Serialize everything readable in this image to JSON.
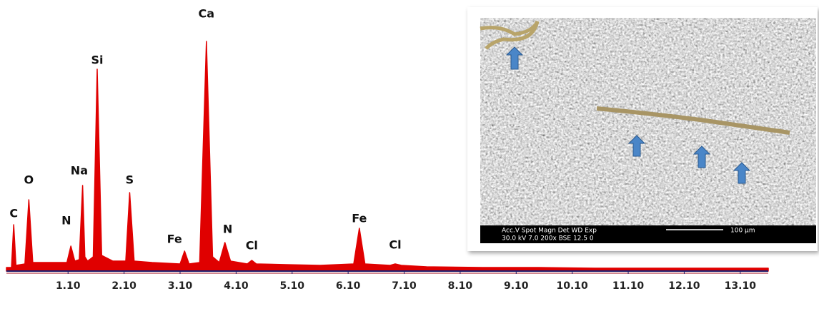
{
  "chart_data": {
    "type": "spectrum",
    "color": "#e00000",
    "x": [
      0,
      0.09,
      0.13,
      0.17,
      0.33,
      0.4,
      0.47,
      0.6,
      1.08,
      1.15,
      1.22,
      1.3,
      1.36,
      1.4,
      1.45,
      1.55,
      1.62,
      1.7,
      1.9,
      2.13,
      2.2,
      2.28,
      2.6,
      3.1,
      3.18,
      3.26,
      3.45,
      3.57,
      3.68,
      3.8,
      3.9,
      4.0,
      4.3,
      4.38,
      4.46,
      5.0,
      5.6,
      6.2,
      6.3,
      6.4,
      6.85,
      6.94,
      7.05,
      7.5,
      8.5,
      9.5,
      10.5,
      11.5,
      12.5,
      13.6
    ],
    "values": [
      5,
      5,
      65,
      8,
      10,
      100,
      12,
      12,
      12,
      35,
      14,
      16,
      120,
      20,
      14,
      20,
      283,
      22,
      14,
      14,
      110,
      14,
      12,
      10,
      28,
      10,
      12,
      322,
      20,
      12,
      40,
      14,
      10,
      15,
      10,
      9,
      8,
      10,
      60,
      10,
      8,
      10,
      8,
      6,
      5,
      5,
      4,
      4,
      4,
      4
    ],
    "xlim": [
      0,
      13.6
    ],
    "ylim": [
      0,
      370
    ],
    "xticks": [
      {
        "value": 1.1,
        "label": "1.10"
      },
      {
        "value": 2.1,
        "label": "2.10"
      },
      {
        "value": 3.1,
        "label": "3.10"
      },
      {
        "value": 4.1,
        "label": "4.10"
      },
      {
        "value": 5.1,
        "label": "5.10"
      },
      {
        "value": 6.1,
        "label": "6.10"
      },
      {
        "value": 7.1,
        "label": "7.10"
      },
      {
        "value": 8.1,
        "label": "8.10"
      },
      {
        "value": 9.1,
        "label": "9.10"
      },
      {
        "value": 10.1,
        "label": "10.10"
      },
      {
        "value": 11.1,
        "label": "11.10"
      },
      {
        "value": 12.1,
        "label": "12.10"
      },
      {
        "value": 13.1,
        "label": "13.10"
      }
    ],
    "annotations": [
      {
        "text": "C",
        "x": 0.13,
        "y": 80
      },
      {
        "text": "O",
        "x": 0.4,
        "y": 127
      },
      {
        "text": "N",
        "x": 1.07,
        "y": 70
      },
      {
        "text": "Na",
        "x": 1.3,
        "y": 140
      },
      {
        "text": "Si",
        "x": 1.62,
        "y": 295
      },
      {
        "text": "S",
        "x": 2.2,
        "y": 127
      },
      {
        "text": "Fe",
        "x": 3.0,
        "y": 44
      },
      {
        "text": "Ca",
        "x": 3.57,
        "y": 360
      },
      {
        "text": "N",
        "x": 3.95,
        "y": 58
      },
      {
        "text": "Cl",
        "x": 4.38,
        "y": 35
      },
      {
        "text": "Fe",
        "x": 6.3,
        "y": 73
      },
      {
        "text": "Cl",
        "x": 6.94,
        "y": 36
      }
    ],
    "inset": {
      "info_header": "Acc.V  Spot Magn    Det  WD  Exp",
      "info_values": "30.0 kV 7.0   200x     BSE 12.5  0",
      "scale_label": "100 µm"
    }
  }
}
